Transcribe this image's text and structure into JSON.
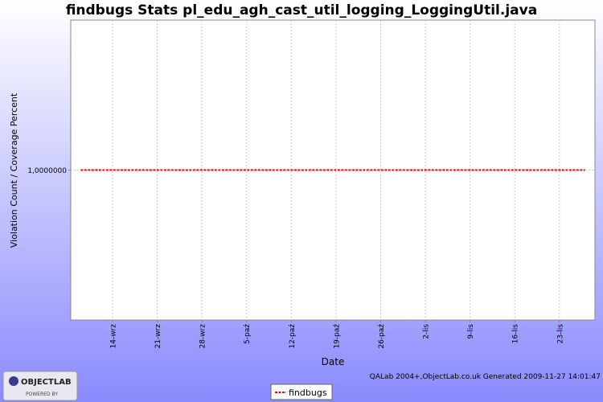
{
  "chart_data": {
    "type": "line",
    "title": "findbugs  Stats pl_edu_agh_cast_util_logging_LoggingUtil.java",
    "x_label": "Date",
    "y_label": "Violation Count / Coverage Percent",
    "categories": [
      null,
      null,
      null,
      null,
      null,
      "14-wrz",
      null,
      null,
      null,
      null,
      null,
      null,
      "21-wrz",
      null,
      null,
      null,
      null,
      null,
      null,
      "28-wrz",
      null,
      null,
      null,
      null,
      null,
      null,
      "5-paź",
      null,
      null,
      null,
      null,
      null,
      null,
      "12-paź",
      null,
      null,
      null,
      null,
      null,
      null,
      "19-paź",
      null,
      null,
      null,
      null,
      null,
      null,
      "26-paź",
      null,
      null,
      null,
      null,
      null,
      null,
      "2-lis",
      null,
      null,
      null,
      null,
      null,
      null,
      "9-lis",
      null,
      null,
      null,
      null,
      null,
      null,
      "16-lis",
      null,
      null,
      null,
      null,
      null,
      null,
      "23-lis",
      null,
      null,
      null,
      null
    ],
    "series": [
      {
        "name": "findbugs",
        "color": "#ff0000",
        "values": [
          1,
          1,
          1,
          1,
          1,
          1,
          1,
          1,
          1,
          1,
          1,
          1,
          1,
          1,
          1,
          1,
          1,
          1,
          1,
          1,
          1,
          1,
          1,
          1,
          1,
          1,
          1,
          1,
          1,
          1,
          1,
          1,
          1,
          1,
          1,
          1,
          1,
          1,
          1,
          1,
          1,
          1,
          1,
          1,
          1,
          1,
          1,
          1,
          1,
          1,
          1,
          1,
          1,
          1,
          1,
          1,
          1,
          1,
          1,
          1,
          1,
          1,
          1,
          1,
          1,
          1,
          1,
          1,
          1,
          1,
          1,
          1,
          1,
          1,
          1,
          1,
          1,
          1,
          1,
          1
        ]
      }
    ],
    "ylim": [
      0,
      2
    ],
    "yticks": [
      {
        "value": 1,
        "label": "1,0000000"
      }
    ],
    "grid": true,
    "legend": "bottom",
    "footer": "QALab 2004+,ObjectLab.co.uk Generated 2009-11-27 14:01:47",
    "logo": {
      "name": "OBJECTLAB",
      "tagline": "POWERED BY"
    }
  }
}
